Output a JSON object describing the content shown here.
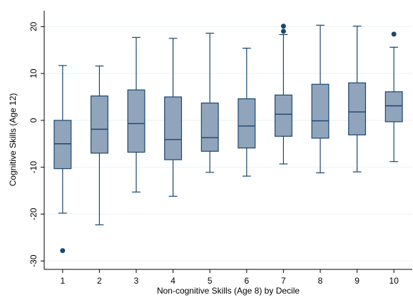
{
  "chart_data": {
    "type": "box",
    "x_label": "Non-cognitive Skills (Age 8) by Decile",
    "y_label": "Cognitive Skills (Age 12)",
    "categories": [
      "1",
      "2",
      "3",
      "4",
      "5",
      "6",
      "7",
      "8",
      "9",
      "10"
    ],
    "boxes": [
      {
        "whisker_low": -19.8,
        "q1": -10.3,
        "median": -5.0,
        "q3": 0.0,
        "whisker_high": 11.7,
        "outliers": [
          -27.8
        ]
      },
      {
        "whisker_low": -22.3,
        "q1": -7.0,
        "median": -1.9,
        "q3": 5.2,
        "whisker_high": 11.6,
        "outliers": []
      },
      {
        "whisker_low": -15.3,
        "q1": -6.8,
        "median": -0.7,
        "q3": 6.5,
        "whisker_high": 17.7,
        "outliers": []
      },
      {
        "whisker_low": -16.2,
        "q1": -8.4,
        "median": -4.1,
        "q3": 5.0,
        "whisker_high": 17.5,
        "outliers": []
      },
      {
        "whisker_low": -11.1,
        "q1": -6.6,
        "median": -3.7,
        "q3": 3.7,
        "whisker_high": 18.6,
        "outliers": []
      },
      {
        "whisker_low": -11.9,
        "q1": -5.9,
        "median": -1.2,
        "q3": 4.6,
        "whisker_high": 15.4,
        "outliers": []
      },
      {
        "whisker_low": -9.3,
        "q1": -3.4,
        "median": 1.3,
        "q3": 5.4,
        "whisker_high": 18.3,
        "outliers": [
          20.1,
          19.0
        ]
      },
      {
        "whisker_low": -11.2,
        "q1": -3.8,
        "median": -0.1,
        "q3": 7.7,
        "whisker_high": 20.3,
        "outliers": []
      },
      {
        "whisker_low": -11.0,
        "q1": -3.1,
        "median": 1.8,
        "q3": 8.0,
        "whisker_high": 20.1,
        "outliers": []
      },
      {
        "whisker_low": -8.8,
        "q1": -0.3,
        "median": 3.1,
        "q3": 6.1,
        "whisker_high": 15.6,
        "outliers": [
          18.4
        ]
      }
    ],
    "box_color": "#90a4bb",
    "line_color": "#1a476f",
    "ylim": [
      -31.8,
      23.4
    ],
    "yticks": [
      -30,
      -20,
      -10,
      0,
      10,
      20
    ],
    "grid": true
  }
}
